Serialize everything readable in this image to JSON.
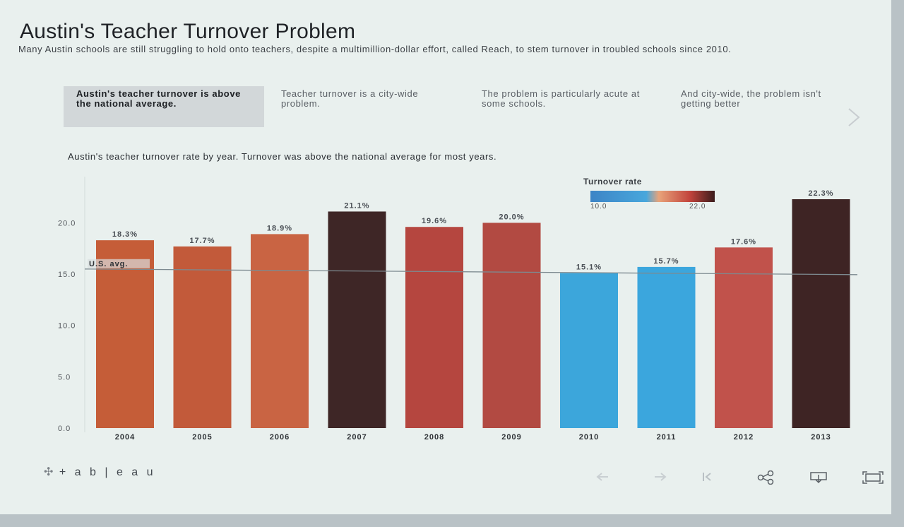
{
  "header": {
    "title": "Austin's Teacher Turnover Problem",
    "subtitle": "Many Austin schools are still struggling to hold onto teachers, despite a multimillion-dollar effort, called Reach, to stem turnover in troubled schools since 2010."
  },
  "story": {
    "tabs": [
      {
        "label": "Austin's teacher turnover is above the national average.",
        "active": true
      },
      {
        "label": "Teacher turnover is a city-wide problem.",
        "active": false
      },
      {
        "label": "The problem is particularly acute at some schools.",
        "active": false
      },
      {
        "label": "And city-wide, the problem isn't getting better",
        "active": false
      }
    ],
    "next_icon": "chevron-right-icon"
  },
  "chart_caption": "Austin's teacher turnover rate by year. Turnover was above the national average for most years.",
  "legend": {
    "title": "Turnover rate",
    "min_label": "10.0",
    "max_label": "22.0"
  },
  "chart_data": {
    "type": "bar",
    "categories": [
      "2004",
      "2005",
      "2006",
      "2007",
      "2008",
      "2009",
      "2010",
      "2011",
      "2012",
      "2013"
    ],
    "values": [
      18.3,
      17.7,
      18.9,
      21.1,
      19.6,
      20.0,
      15.1,
      15.7,
      17.6,
      22.3
    ],
    "data_labels": [
      "18.3%",
      "17.7%",
      "18.9%",
      "21.1%",
      "19.6%",
      "20.0%",
      "15.1%",
      "15.7%",
      "17.6%",
      "22.3%"
    ],
    "y_ticks": [
      "0.0",
      "5.0",
      "10.0",
      "15.0",
      "20.0"
    ],
    "ylim": [
      0,
      22.3
    ],
    "reference_line": {
      "label": "U.S. avg.",
      "value": 15.5
    },
    "color_scale": {
      "min": 10.0,
      "max": 22.0,
      "low_color": "#3d84c6",
      "mid_color": "#e8a37a",
      "high_color": "#3b1c1c"
    },
    "colors": [
      "#c55d38",
      "#c25a3a",
      "#c96443",
      "#3e2626",
      "#b5463f",
      "#b24a42",
      "#3ca6db",
      "#3ba6dd",
      "#c1524b",
      "#3e2424"
    ]
  },
  "footer": {
    "brand": "+ a b | e a u",
    "icons": [
      "undo-icon",
      "redo-icon",
      "revert-icon",
      "share-icon",
      "download-icon",
      "fullscreen-icon"
    ]
  }
}
